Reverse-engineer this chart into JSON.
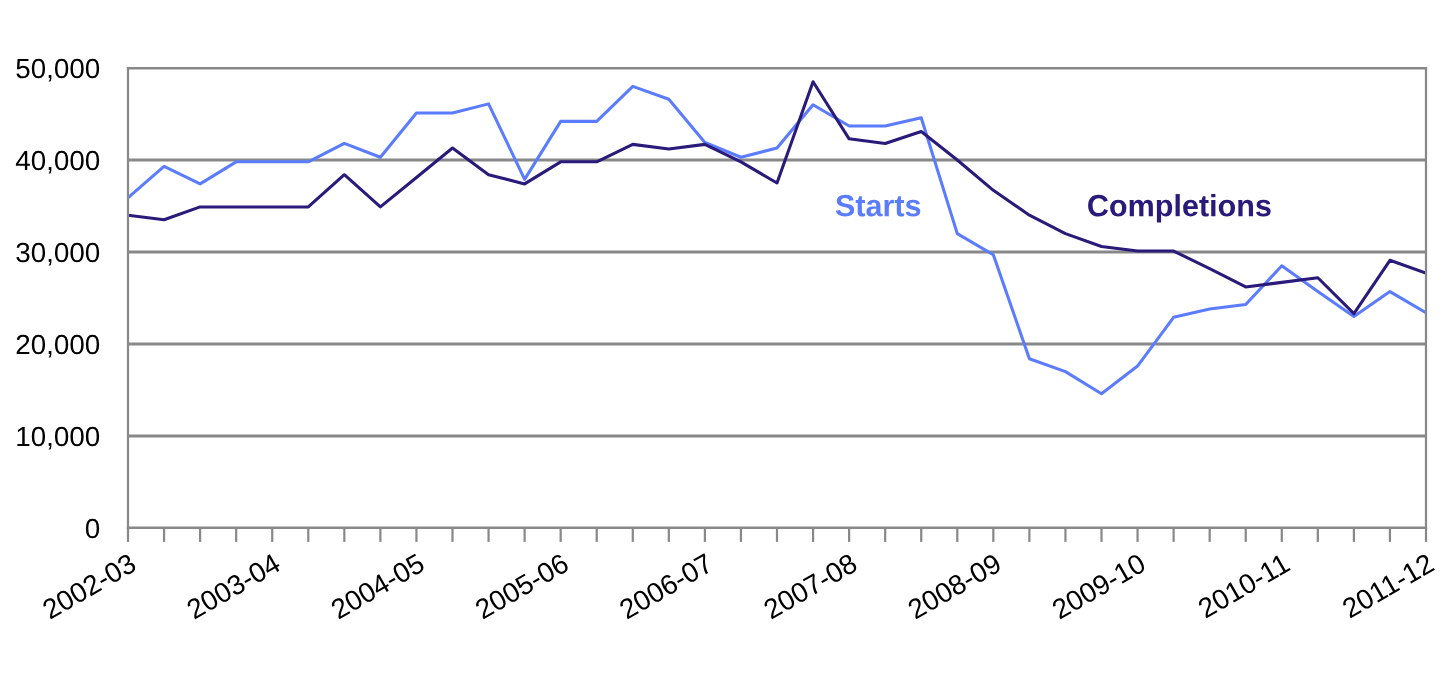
{
  "chart_data": {
    "type": "line",
    "categories": [
      "2002-03",
      null,
      null,
      null,
      "2003-04",
      null,
      null,
      null,
      "2004-05",
      null,
      null,
      null,
      "2005-06",
      null,
      null,
      null,
      "2006-07",
      null,
      null,
      null,
      "2007-08",
      null,
      null,
      null,
      "2008-09",
      null,
      null,
      null,
      "2009-10",
      null,
      null,
      null,
      "2010-11",
      null,
      null,
      null,
      "2011-12"
    ],
    "series": [
      {
        "name": "Starts",
        "color": "#5b7cff",
        "values": [
          35900,
          39300,
          37400,
          39800,
          39800,
          39800,
          41800,
          40300,
          45100,
          45100,
          46100,
          37900,
          44200,
          44200,
          48000,
          46600,
          41900,
          40300,
          41300,
          46000,
          43700,
          43700,
          44600,
          32000,
          29700,
          18400,
          17000,
          14600,
          17600,
          22900,
          23800,
          24300,
          28500,
          25700,
          23000,
          25700,
          23400
        ]
      },
      {
        "name": "Completions",
        "color": "#2a1a7a",
        "values": [
          34000,
          33500,
          34900,
          34900,
          34900,
          34900,
          38400,
          34900,
          38100,
          41300,
          38400,
          37400,
          39800,
          39800,
          41700,
          41200,
          41700,
          39800,
          37500,
          48500,
          42300,
          41800,
          43100,
          40000,
          36700,
          34000,
          32000,
          30600,
          30100,
          30100,
          28200,
          26200,
          26700,
          27200,
          23300,
          29100,
          27700
        ]
      }
    ],
    "ylim": [
      0,
      50000
    ],
    "yticks": [
      {
        "value": 0,
        "label": "0"
      },
      {
        "value": 10000,
        "label": "10,000"
      },
      {
        "value": 20000,
        "label": "20,000"
      },
      {
        "value": 30000,
        "label": "30,000"
      },
      {
        "value": 40000,
        "label": "40,000"
      },
      {
        "value": 50000,
        "label": "50,000"
      }
    ],
    "grid": "y",
    "legend": false,
    "marker": "none",
    "line_style": "solid"
  }
}
